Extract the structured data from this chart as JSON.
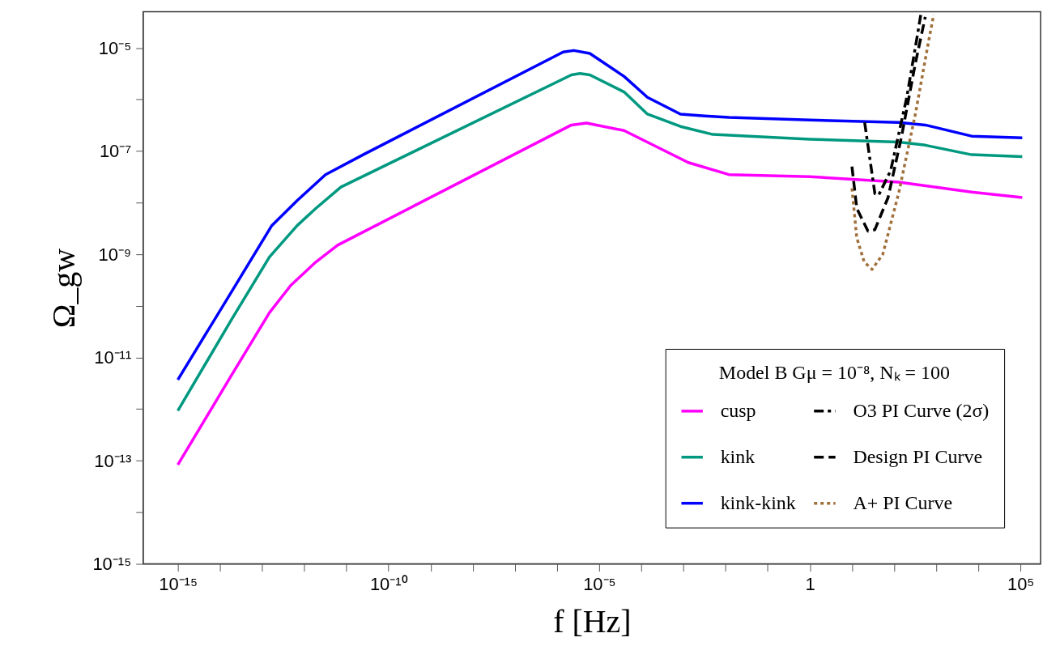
{
  "chart_data": {
    "type": "line",
    "xlabel": "f [Hz]",
    "ylabel": "Ω_gw",
    "legend_title": "Model B Gμ = 10⁻⁸, Nₖ = 100",
    "log": "xy",
    "grid": false,
    "legend": "bottom right",
    "marker": "none",
    "xlim": [
      1.5e-16,
      300000.0
    ],
    "ylim": [
      1e-15,
      5e-05
    ],
    "xticks": [
      {
        "value": 1e-15,
        "label": "10⁻¹⁵"
      },
      {
        "value": 1e-14,
        "label": null
      },
      {
        "value": 1e-13,
        "label": null
      },
      {
        "value": 1e-12,
        "label": null
      },
      {
        "value": 1e-11,
        "label": null
      },
      {
        "value": 1e-10,
        "label": "10⁻¹⁰"
      },
      {
        "value": 1e-09,
        "label": null
      },
      {
        "value": 1e-08,
        "label": null
      },
      {
        "value": 1e-07,
        "label": null
      },
      {
        "value": 1e-06,
        "label": null
      },
      {
        "value": 1e-05,
        "label": "10⁻⁵"
      },
      {
        "value": 0.0001,
        "label": null
      },
      {
        "value": 0.001,
        "label": null
      },
      {
        "value": 0.01,
        "label": null
      },
      {
        "value": 0.1,
        "label": null
      },
      1,
      {
        "value": 10,
        "label": null
      },
      {
        "value": 100,
        "label": null
      },
      {
        "value": 1000,
        "label": null
      },
      {
        "value": 10000,
        "label": null
      },
      {
        "value": 100000,
        "label": "10⁵"
      }
    ],
    "yticks": [
      {
        "value": 1e-15,
        "label": "10⁻¹⁵"
      },
      {
        "value": 1e-14,
        "label": null
      },
      {
        "value": 1e-13,
        "label": "10⁻¹³"
      },
      {
        "value": 1e-12,
        "label": null
      },
      {
        "value": 1e-11,
        "label": "10⁻¹¹"
      },
      {
        "value": 1e-10,
        "label": null
      },
      {
        "value": 1e-09,
        "label": "10⁻⁹"
      },
      {
        "value": 1e-08,
        "label": null
      },
      {
        "value": 1e-07,
        "label": "10⁻⁷"
      },
      {
        "value": 1e-06,
        "label": null
      },
      {
        "value": 1e-05,
        "label": "10⁻⁵"
      }
    ],
    "series": [
      {
        "name": "cusp",
        "color": "#ff00ff",
        "line_style": "solid",
        "x": [
          1e-15,
          1.9e-14,
          1.5e-13,
          4.8e-13,
          1.9e-12,
          6.2e-12,
          2.2e-06,
          5e-06,
          3.9e-05,
          0.0013,
          0.012,
          1,
          130,
          6900,
          110000.0
        ],
        "values": [
          8.3e-14,
          4.6e-12,
          7.4e-11,
          2.5e-10,
          7.1e-10,
          1.5e-09,
          3.2e-07,
          3.5e-07,
          2.5e-07,
          6e-08,
          3.5e-08,
          3.2e-08,
          2.5e-08,
          1.6e-08,
          1.26e-08
        ]
      },
      {
        "name": "kink",
        "color": "#009980",
        "line_style": "solid",
        "x": [
          1e-15,
          1.9e-14,
          1.5e-13,
          6.8e-13,
          1.9e-12,
          7.4e-12,
          2.2e-06,
          3.5e-06,
          6e-06,
          3.9e-05,
          0.00014,
          0.00085,
          0.005,
          1,
          130,
          550,
          6900,
          110000.0
        ],
        "values": [
          9.3e-13,
          5.5e-11,
          8.9e-10,
          3.6e-09,
          7.8e-09,
          2e-08,
          3e-06,
          3.2e-06,
          3e-06,
          1.4e-06,
          5.2e-07,
          3e-07,
          2.1e-07,
          1.7e-07,
          1.5e-07,
          1.3e-07,
          8.5e-08,
          7.8e-08
        ]
      },
      {
        "name": "kink-kink",
        "color": "#0000ff",
        "line_style": "solid",
        "x": [
          1e-15,
          1.9e-14,
          1.7e-13,
          6.8e-13,
          3.2e-12,
          2.5e-11,
          1.4e-06,
          2.5e-06,
          6e-06,
          3.9e-05,
          0.00014,
          0.00085,
          0.0032,
          0.012,
          1,
          130,
          550,
          6900,
          110000.0
        ],
        "values": [
          3.7e-12,
          1.9e-10,
          3.6e-09,
          1.1e-08,
          3.5e-08,
          8.5e-08,
          8.3e-06,
          8.9e-06,
          7.8e-06,
          2.8e-06,
          1.1e-06,
          5.2e-07,
          4.8e-07,
          4.5e-07,
          4e-07,
          3.6e-07,
          3.2e-07,
          1.95e-07,
          1.8e-07
        ]
      },
      {
        "name": "O3 PI Curve (2σ)",
        "color": "#000000",
        "line_style": "dashdot",
        "x": [
          20,
          35,
          43,
          83,
          200,
          355,
          430
        ],
        "values": [
          3.6e-07,
          1.5e-08,
          1.4e-08,
          4.2e-08,
          1.1e-06,
          1.7e-05,
          4.4e-05
        ]
      },
      {
        "name": "Design PI Curve",
        "color": "#000000",
        "line_style": "dashed",
        "x": [
          10,
          13,
          24,
          35,
          72,
          150,
          320,
          550
        ],
        "values": [
          5e-08,
          7.8e-09,
          2.8e-09,
          3e-09,
          1.26e-08,
          1.9e-07,
          5e-06,
          4e-05
        ]
      },
      {
        "name": "A+ PI Curve",
        "color": "#a0703c",
        "line_style": "dotted",
        "x": [
          10,
          13,
          19.5,
          30,
          54,
          130,
          320,
          660,
          870
        ],
        "values": [
          1.9e-08,
          2.1e-09,
          7.1e-10,
          5.1e-10,
          1e-09,
          1.6e-08,
          5.2e-07,
          1.35e-05,
          4.4e-05
        ]
      }
    ]
  }
}
